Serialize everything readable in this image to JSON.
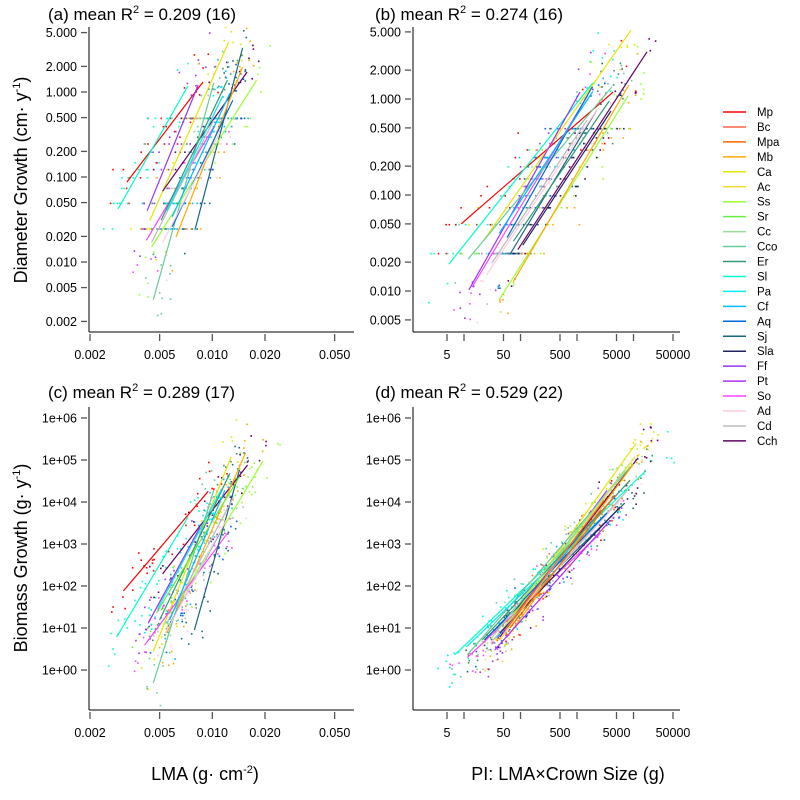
{
  "legend": [
    {
      "name": "Mp",
      "color": "#ff0000"
    },
    {
      "name": "Bc",
      "color": "#ff6644"
    },
    {
      "name": "Mpa",
      "color": "#ff6600"
    },
    {
      "name": "Mb",
      "color": "#ffaa00"
    },
    {
      "name": "Ca",
      "color": "#e6e600"
    },
    {
      "name": "Ac",
      "color": "#f2dd33"
    },
    {
      "name": "Ss",
      "color": "#99ff33"
    },
    {
      "name": "Sr",
      "color": "#66ee44"
    },
    {
      "name": "Cc",
      "color": "#99dd99"
    },
    {
      "name": "Cco",
      "color": "#66cc99"
    },
    {
      "name": "Er",
      "color": "#339977"
    },
    {
      "name": "Sl",
      "color": "#00ffcc"
    },
    {
      "name": "Pa",
      "color": "#00eeee"
    },
    {
      "name": "Cf",
      "color": "#00bbff"
    },
    {
      "name": "Aq",
      "color": "#0066dd"
    },
    {
      "name": "Sj",
      "color": "#1a6680"
    },
    {
      "name": "Sla",
      "color": "#222266"
    },
    {
      "name": "Ff",
      "color": "#9933ff"
    },
    {
      "name": "Pt",
      "color": "#aa33ff"
    },
    {
      "name": "So",
      "color": "#ff44ff"
    },
    {
      "name": "Ad",
      "color": "#ffccdd"
    },
    {
      "name": "Cd",
      "color": "#bbbbbb"
    },
    {
      "name": "Cch",
      "color": "#660066"
    }
  ],
  "axis_titles": {
    "y_top": {
      "text": "Diameter Growth  (cm· y",
      "sup": "-1",
      "end": ")"
    },
    "y_bottom": {
      "text": "Biomass Growth  (g· y",
      "sup": "-1",
      "end": ")"
    },
    "x_left": {
      "text": "LMA  (g· cm",
      "sup": "-2",
      "end": ")"
    },
    "x_right": {
      "text": "PI: LMA×Crown Size (g)"
    }
  },
  "chart_data": [
    {
      "panel": "(a)",
      "type": "scatter",
      "title": {
        "stat": "mean R",
        "sup": "2",
        "value": "= 0.209",
        "n": "(16)"
      },
      "x_scale": "log",
      "y_scale": "log",
      "grid": false,
      "xticks": [
        0.002,
        0.005,
        0.01,
        0.02,
        0.05
      ],
      "xtick_labels": [
        "0.002",
        "0.005",
        "0.010",
        "0.020",
        "0.050"
      ],
      "yticks": [
        5,
        2,
        1,
        0.5,
        0.2,
        0.1,
        0.05,
        0.02,
        0.01,
        0.005,
        0.002
      ],
      "ytick_labels": [
        "5.000",
        "2.000",
        "1.000",
        "0.500",
        "0.200",
        "0.100",
        "0.050",
        "0.020",
        "0.010",
        "0.005",
        "0.002"
      ],
      "lines": [
        {
          "species": "Mp",
          "x": [
            0.00325,
            0.00885
          ],
          "y": [
            0.087,
            1.31
          ]
        },
        {
          "species": "Sl",
          "x": [
            0.00289,
            0.00725
          ],
          "y": [
            0.042,
            1.18
          ]
        },
        {
          "species": "Ff",
          "x": [
            0.00424,
            0.0083
          ],
          "y": [
            0.04,
            1.21
          ]
        },
        {
          "species": "Ca",
          "x": [
            0.0044,
            0.0124
          ],
          "y": [
            0.031,
            3.87
          ]
        },
        {
          "species": "Cch",
          "x": [
            0.0052,
            0.0158
          ],
          "y": [
            0.068,
            1.72
          ]
        },
        {
          "species": "Sj",
          "x": [
            0.008,
            0.0149
          ],
          "y": [
            0.025,
            3.3
          ]
        },
        {
          "species": "Cco",
          "x": [
            0.0046,
            0.0102
          ],
          "y": [
            0.0036,
            1.28
          ]
        },
        {
          "species": "Ss",
          "x": [
            0.0045,
            0.0179
          ],
          "y": [
            0.015,
            1.38
          ]
        },
        {
          "species": "Mb",
          "x": [
            0.0062,
            0.0149
          ],
          "y": [
            0.0197,
            1.97
          ]
        },
        {
          "species": "So",
          "x": [
            0.0042,
            0.0102
          ],
          "y": [
            0.018,
            0.39
          ]
        },
        {
          "species": "Aq",
          "x": [
            0.0059,
            0.0131
          ],
          "y": [
            0.026,
            0.8
          ]
        },
        {
          "species": "Cd",
          "x": [
            0.0045,
            0.0102
          ],
          "y": [
            0.017,
            0.47
          ]
        },
        {
          "species": "Ad",
          "x": [
            0.0052,
            0.011
          ],
          "y": [
            0.017,
            0.33
          ]
        },
        {
          "species": "Er",
          "x": [
            0.0051,
            0.0122
          ],
          "y": [
            0.031,
            1.38
          ]
        },
        {
          "species": "Cf",
          "x": [
            0.0059,
            0.0126
          ],
          "y": [
            0.034,
            0.97
          ]
        },
        {
          "species": "Pa",
          "x": [
            0.0055,
            0.0115
          ],
          "y": [
            0.04,
            0.9
          ]
        }
      ]
    },
    {
      "panel": "(b)",
      "type": "scatter",
      "title": {
        "stat": "mean R",
        "sup": "2",
        "value": "= 0.274",
        "n": "(16)"
      },
      "x_scale": "log",
      "y_scale": "log",
      "grid": false,
      "xticks": [
        5,
        10,
        50,
        100,
        500,
        1000,
        5000,
        10000,
        50000
      ],
      "xtick_labels": [
        "5",
        "",
        "50",
        "",
        "500",
        "",
        "5000",
        "",
        "50000"
      ],
      "yticks": [
        5,
        2,
        1,
        0.5,
        0.2,
        0.1,
        0.05,
        0.02,
        0.01,
        0.005
      ],
      "ytick_labels": [
        "5.000",
        "2.000",
        "1.000",
        "0.500",
        "0.200",
        "0.100",
        "0.050",
        "0.020",
        "0.010",
        "0.005"
      ],
      "lines": [
        {
          "species": "Mp",
          "x": [
            8.9,
            4350
          ],
          "y": [
            0.05,
            1.18
          ]
        },
        {
          "species": "Sl",
          "x": [
            5.4,
            1900
          ],
          "y": [
            0.019,
            1.47
          ]
        },
        {
          "species": "Ca",
          "x": [
            22.6,
            9000
          ],
          "y": [
            0.034,
            5.2
          ]
        },
        {
          "species": "Cch",
          "x": [
            90,
            17300
          ],
          "y": [
            0.027,
            3.1
          ]
        },
        {
          "species": "Ss",
          "x": [
            42,
            8000
          ],
          "y": [
            0.0081,
            1.07
          ]
        },
        {
          "species": "Mb",
          "x": [
            74,
            8300
          ],
          "y": [
            0.0124,
            1.4
          ]
        },
        {
          "species": "Ff",
          "x": [
            12.2,
            1130
          ],
          "y": [
            0.0103,
            1.18
          ]
        },
        {
          "species": "So",
          "x": [
            13.9,
            1560
          ],
          "y": [
            0.011,
            1.1
          ]
        },
        {
          "species": "Cco",
          "x": [
            11.8,
            4100
          ],
          "y": [
            0.0215,
            1.33
          ]
        },
        {
          "species": "Sj",
          "x": [
            65,
            2240
          ],
          "y": [
            0.024,
            0.77
          ]
        },
        {
          "species": "Ad",
          "x": [
            25,
            2240
          ],
          "y": [
            0.0147,
            0.77
          ]
        },
        {
          "species": "Cd",
          "x": [
            31,
            1500
          ],
          "y": [
            0.0195,
            0.6
          ]
        },
        {
          "species": "Aq",
          "x": [
            58,
            1850
          ],
          "y": [
            0.036,
            1.33
          ]
        },
        {
          "species": "Er",
          "x": [
            75,
            3700
          ],
          "y": [
            0.033,
            0.95
          ]
        },
        {
          "species": "Cf",
          "x": [
            42,
            1900
          ],
          "y": [
            0.04,
            1.2
          ]
        },
        {
          "species": "Sla",
          "x": [
            110,
            4000
          ],
          "y": [
            0.03,
            0.75
          ]
        }
      ]
    },
    {
      "panel": "(c)",
      "type": "scatter",
      "title": {
        "stat": "mean R",
        "sup": "2",
        "value": "= 0.289",
        "n": "(17)"
      },
      "x_scale": "log",
      "y_scale": "log",
      "grid": false,
      "xticks": [
        0.002,
        0.005,
        0.01,
        0.02,
        0.05
      ],
      "xtick_labels": [
        "0.002",
        "0.005",
        "0.010",
        "0.020",
        "0.050"
      ],
      "yticks": [
        1000000,
        100000,
        10000,
        1000,
        100,
        10,
        1
      ],
      "ytick_labels": [
        "1e+06",
        "1e+05",
        "1e+04",
        "1e+03",
        "1e+02",
        "1e+01",
        "1e+00"
      ],
      "lines": [
        {
          "species": "Mp",
          "x": [
            0.0031,
            0.00947
          ],
          "y": [
            76,
            18000
          ]
        },
        {
          "species": "Sl",
          "x": [
            0.00284,
            0.00726
          ],
          "y": [
            6.1,
            4400
          ]
        },
        {
          "species": "Cch",
          "x": [
            0.0052,
            0.0159
          ],
          "y": [
            194,
            76000
          ]
        },
        {
          "species": "Ff",
          "x": [
            0.0043,
            0.0085
          ],
          "y": [
            13,
            2500
          ]
        },
        {
          "species": "Ca",
          "x": [
            0.0046,
            0.0128
          ],
          "y": [
            2.8,
            118000
          ]
        },
        {
          "species": "Mb",
          "x": [
            0.0055,
            0.0155
          ],
          "y": [
            7.6,
            148000
          ]
        },
        {
          "species": "Ss",
          "x": [
            0.0059,
            0.0195
          ],
          "y": [
            23,
            95000
          ]
        },
        {
          "species": "Cco",
          "x": [
            0.0046,
            0.0102
          ],
          "y": [
            0.49,
            19000
          ]
        },
        {
          "species": "So",
          "x": [
            0.0041,
            0.0122
          ],
          "y": [
            3.9,
            1800
          ]
        },
        {
          "species": "Sj",
          "x": [
            0.0079,
            0.0143
          ],
          "y": [
            9,
            58000
          ]
        },
        {
          "species": "Aq",
          "x": [
            0.0056,
            0.011
          ],
          "y": [
            10.5,
            1800
          ]
        },
        {
          "species": "Cd",
          "x": [
            0.0055,
            0.0132
          ],
          "y": [
            13,
            13000
          ]
        },
        {
          "species": "Cf",
          "x": [
            0.0057,
            0.0118
          ],
          "y": [
            15.5,
            19000
          ]
        },
        {
          "species": "Er",
          "x": [
            0.005,
            0.0126
          ],
          "y": [
            15.5,
            48000
          ]
        },
        {
          "species": "Ad",
          "x": [
            0.0054,
            0.012
          ],
          "y": [
            7.6,
            3700
          ]
        },
        {
          "species": "Sr",
          "x": [
            0.0048,
            0.0143
          ],
          "y": [
            23,
            40000
          ]
        },
        {
          "species": "Pa",
          "x": [
            0.0049,
            0.0112
          ],
          "y": [
            30,
            19000
          ]
        }
      ]
    },
    {
      "panel": "(d)",
      "type": "scatter",
      "title": {
        "stat": "mean R",
        "sup": "2",
        "value": "= 0.529",
        "n": "(22)"
      },
      "x_scale": "log",
      "y_scale": "log",
      "grid": false,
      "xticks": [
        5,
        10,
        50,
        100,
        500,
        1000,
        5000,
        10000,
        50000
      ],
      "xtick_labels": [
        "5",
        "",
        "50",
        "",
        "500",
        "",
        "5000",
        "",
        "50000"
      ],
      "yticks": [
        1000000,
        100000,
        10000,
        1000,
        100,
        10,
        1
      ],
      "ytick_labels": [
        "1e+06",
        "1e+05",
        "1e+04",
        "1e+03",
        "1e+02",
        "1e+01",
        "1e+00"
      ],
      "lines": [
        {
          "species": "Sl",
          "x": [
            6.9,
            15800
          ],
          "y": [
            2.3,
            52000
          ]
        },
        {
          "species": "Ca",
          "x": [
            35.5,
            11100
          ],
          "y": [
            5.2,
            250000
          ]
        },
        {
          "species": "Cch",
          "x": [
            43,
            12000
          ],
          "y": [
            6.1,
            112000
          ]
        },
        {
          "species": "So",
          "x": [
            11.5,
            2600
          ],
          "y": [
            2.0,
            1800
          ]
        },
        {
          "species": "Cco",
          "x": [
            11.5,
            8700
          ],
          "y": [
            2.3,
            68000
          ]
        },
        {
          "species": "Sj",
          "x": [
            23,
            7000
          ],
          "y": [
            5.2,
            9400
          ]
        },
        {
          "species": "Mp",
          "x": [
            65,
            2600
          ],
          "y": [
            15.5,
            6400
          ]
        },
        {
          "species": "Cf",
          "x": [
            38,
            1900
          ],
          "y": [
            5.8,
            3700
          ]
        },
        {
          "species": "Ff",
          "x": [
            49,
            3400
          ],
          "y": [
            7.6,
            19000
          ]
        },
        {
          "species": "Ss",
          "x": [
            43,
            8700
          ],
          "y": [
            7.6,
            85000
          ]
        },
        {
          "species": "Pa",
          "x": [
            11,
            5100
          ],
          "y": [
            3.5,
            9400
          ]
        },
        {
          "species": "Mb",
          "x": [
            58,
            9900
          ],
          "y": [
            6.1,
            80000
          ]
        },
        {
          "species": "Er",
          "x": [
            21,
            8700
          ],
          "y": [
            5.2,
            33000
          ]
        },
        {
          "species": "Ad",
          "x": [
            29,
            5800
          ],
          "y": [
            4.4,
            11000
          ]
        },
        {
          "species": "Cd",
          "x": [
            33,
            7800
          ],
          "y": [
            5.2,
            19000
          ]
        },
        {
          "species": "Aq",
          "x": [
            26,
            3400
          ],
          "y": [
            6.1,
            5500
          ]
        },
        {
          "species": "Sla",
          "x": [
            43,
            5800
          ],
          "y": [
            7.6,
            7600
          ]
        },
        {
          "species": "Pt",
          "x": [
            35,
            3900
          ],
          "y": [
            3,
            3700
          ]
        },
        {
          "species": "Ac",
          "x": [
            43,
            10600
          ],
          "y": [
            5.2,
            120000
          ]
        },
        {
          "species": "Cc",
          "x": [
            29,
            7000
          ],
          "y": [
            5.2,
            57000
          ]
        },
        {
          "species": "Bc",
          "x": [
            53,
            3000
          ],
          "y": [
            9,
            11000
          ]
        },
        {
          "species": "Mpa",
          "x": [
            65,
            4700
          ],
          "y": [
            10,
            14600
          ]
        }
      ]
    }
  ]
}
